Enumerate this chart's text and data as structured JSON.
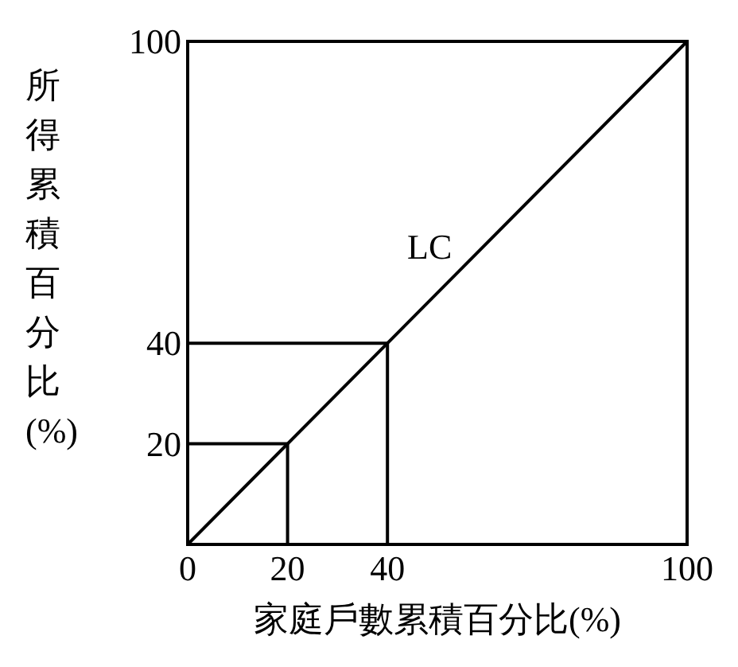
{
  "chart_data": {
    "type": "line",
    "xlabel": "家庭戶數累積百分比(%)",
    "ylabel": "所得累積百分比(%)",
    "xlim": [
      0,
      100
    ],
    "ylim": [
      0,
      100
    ],
    "xticks": [
      0,
      20,
      40,
      100
    ],
    "yticks": [
      20,
      40,
      100
    ],
    "grid": false,
    "marker": "none",
    "line_style": "solid",
    "series": [
      {
        "color": "#000000",
        "x": [
          0,
          100
        ],
        "values": [
          0,
          100
        ]
      },
      {
        "color": "#000000",
        "x": [
          0,
          20,
          20
        ],
        "values": [
          20,
          20,
          0
        ]
      },
      {
        "color": "#000000",
        "x": [
          0,
          40,
          40
        ],
        "values": [
          40,
          40,
          0
        ]
      }
    ],
    "annotations": [
      "LC"
    ]
  }
}
